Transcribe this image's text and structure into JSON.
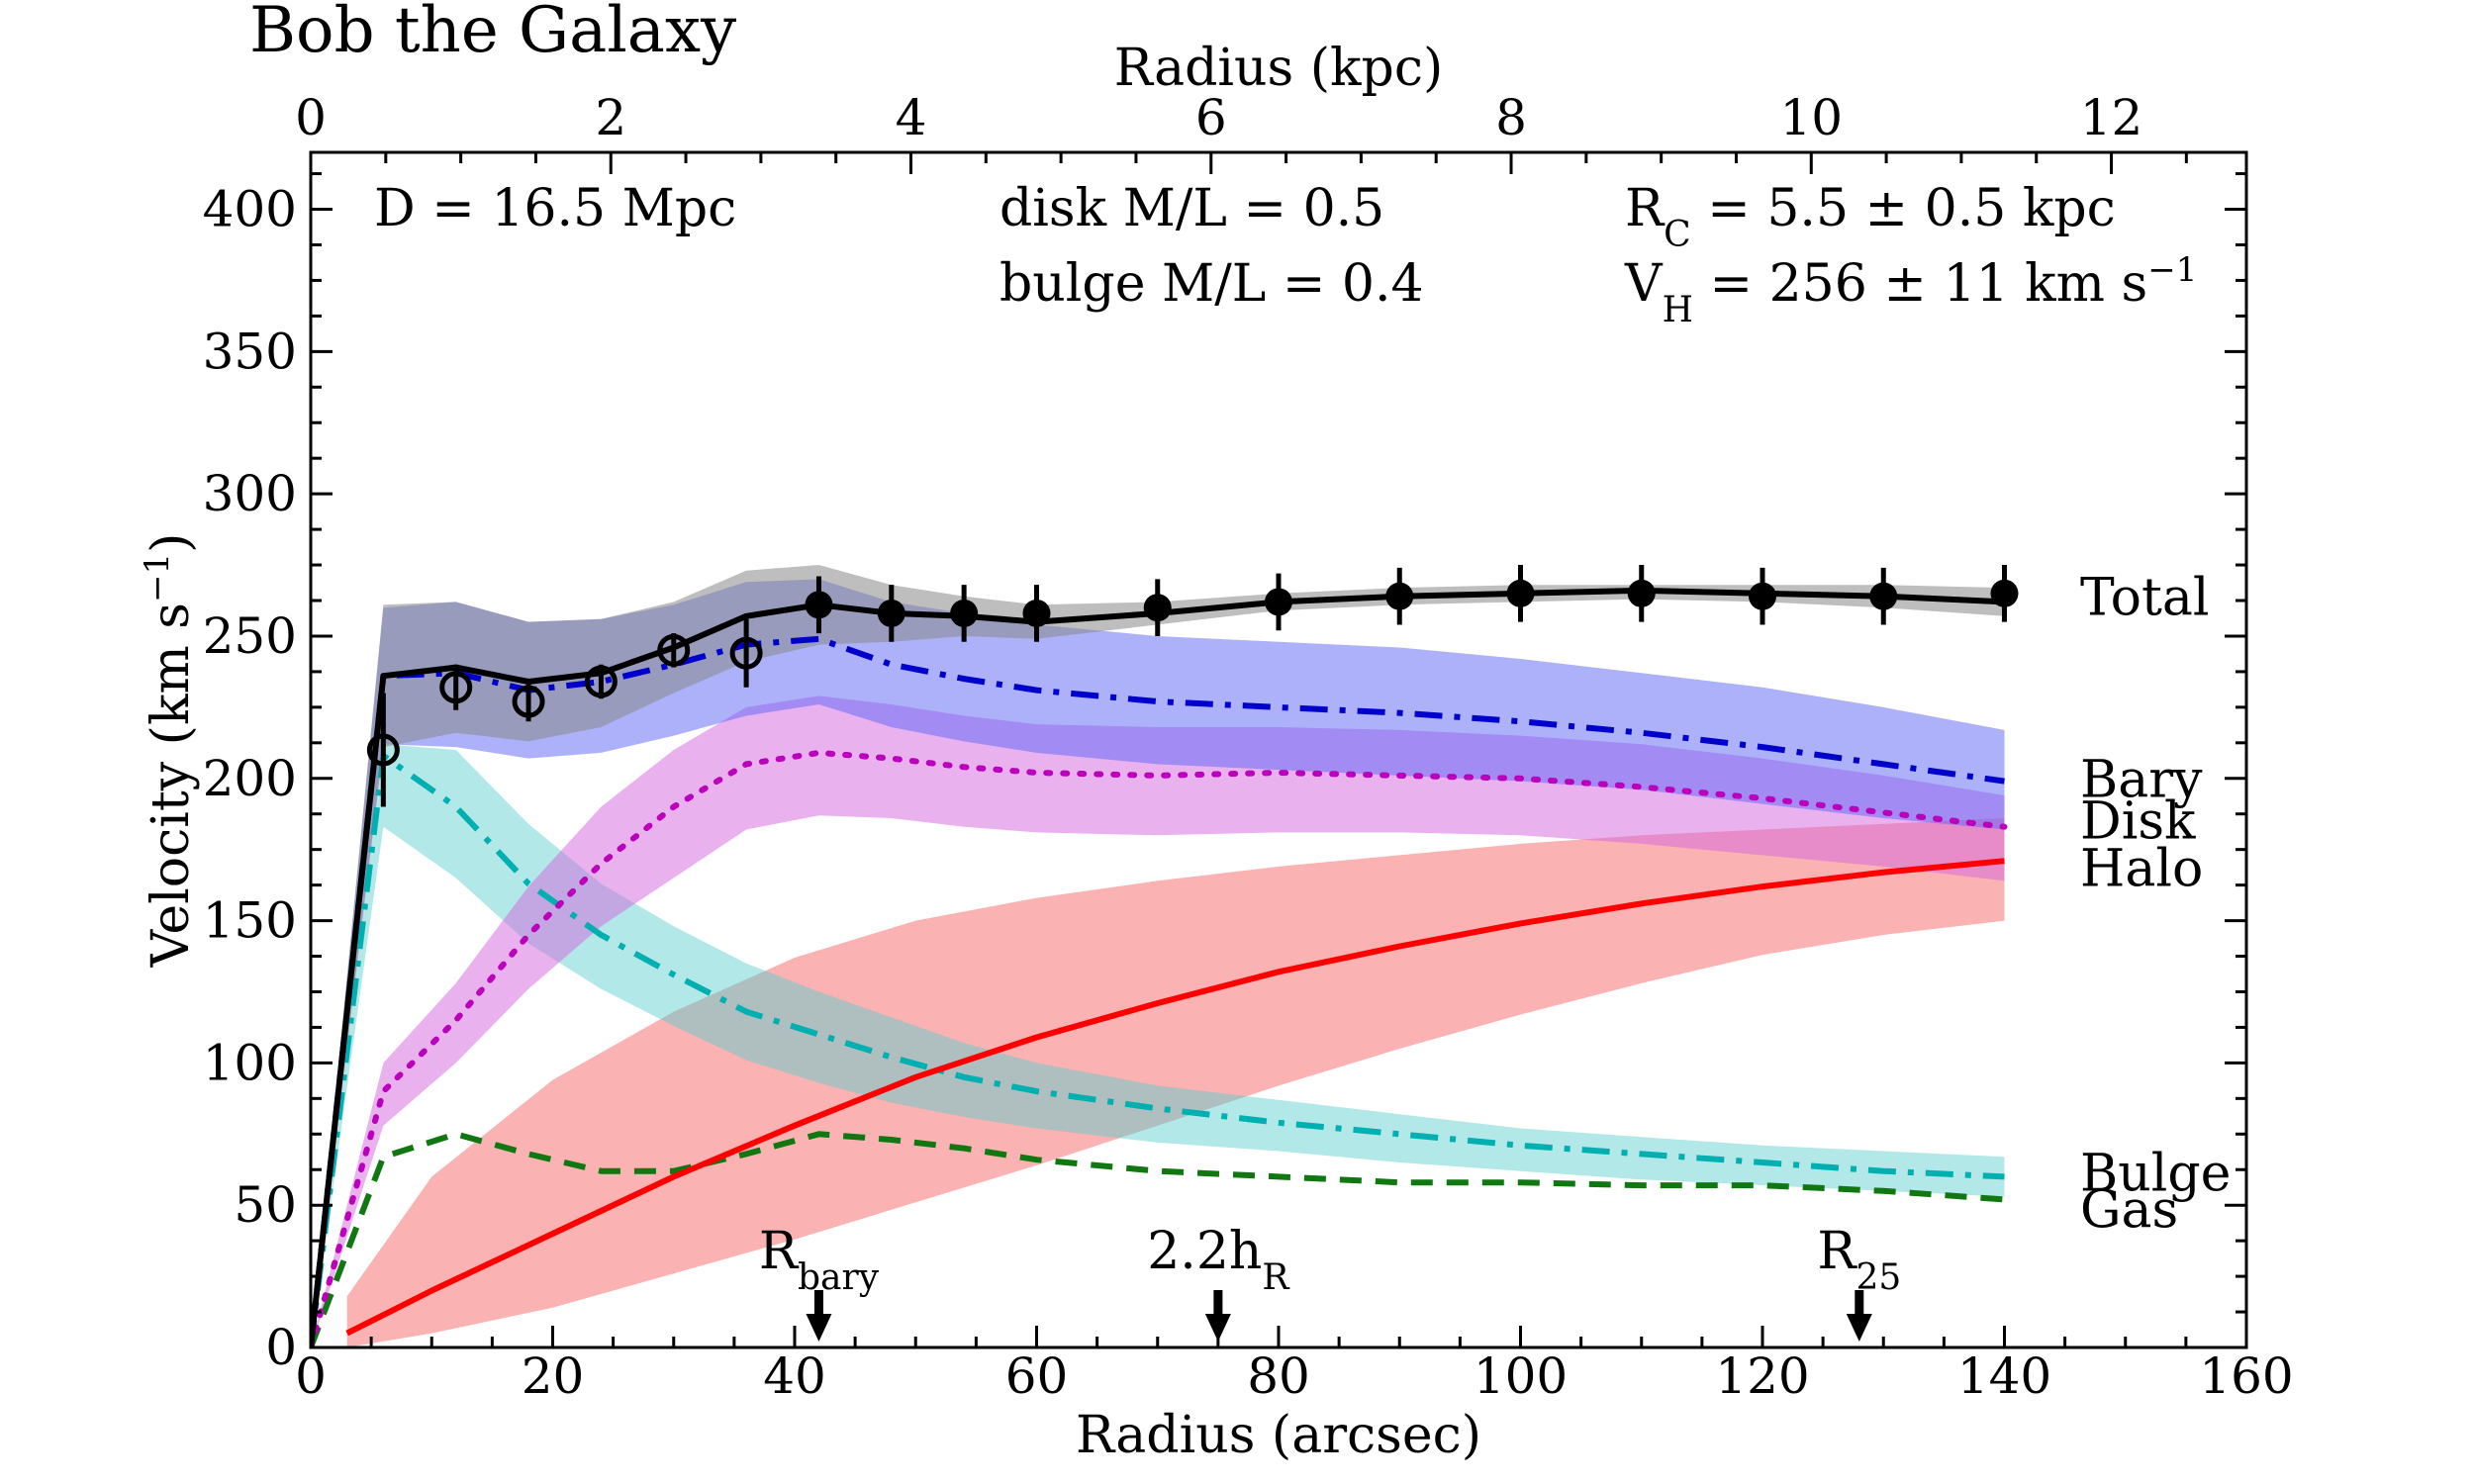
{
  "chart_data": {
    "type": "line",
    "title": "Bob the Galaxy",
    "xlabel": "Radius (arcsec)",
    "x2label": "Radius (kpc)",
    "ylabel": "Velocity (km s",
    "ylabel_sup": "−1",
    "ylabel_end": ")",
    "xlim": [
      0,
      160
    ],
    "ylim": [
      0,
      420
    ],
    "x2lim": [
      0,
      12.9
    ],
    "xticks": [
      "0",
      "20",
      "40",
      "60",
      "80",
      "100",
      "120",
      "140",
      "160"
    ],
    "yticks": [
      "0",
      "50",
      "100",
      "150",
      "200",
      "250",
      "300",
      "350",
      "400"
    ],
    "x2ticks": [
      "0",
      "2",
      "4",
      "6",
      "8",
      "10",
      "12"
    ],
    "grid": false,
    "annotations": {
      "distance": "D = 16.5 Mpc",
      "disk_ml": "disk M/L = 0.5",
      "bulge_ml": "bulge M/L = 0.4",
      "rc_main": "R",
      "rc_sub": "C",
      "rc_rest": " = 5.5 ± 0.5 kpc",
      "vh_main": "V",
      "vh_sub": "H",
      "vh_rest": " = 256 ± 11 km s",
      "vh_sup": "−1"
    },
    "markers": [
      {
        "x": 42,
        "main": "R",
        "sub": "bary"
      },
      {
        "x": 75,
        "main": "2.2h",
        "sub": "R"
      },
      {
        "x": 128,
        "main": "R",
        "sub": "25"
      }
    ],
    "colors": {
      "total": "#000000",
      "bary": "#0000cc",
      "disk": "#bb00bb",
      "bulge": "#00b0b0",
      "gas": "#117711",
      "halo": "#ff0000",
      "total_band": "#888888",
      "bary_band": "#5b63f5",
      "disk_band": "#d466dd",
      "bulge_band": "#55cccc",
      "halo_band": "#f56565"
    },
    "series": [
      {
        "name": "Total",
        "key": "total",
        "style": "solid",
        "x": [
          0,
          6,
          12,
          18,
          24,
          30,
          36,
          42,
          48,
          54,
          60,
          70,
          80,
          90,
          100,
          110,
          120,
          130,
          140
        ],
        "y": [
          0,
          236,
          239,
          234,
          237,
          246,
          257,
          261,
          258,
          257,
          255,
          258,
          262,
          264,
          265,
          266,
          265,
          264,
          262
        ],
        "upper": [
          0,
          261,
          262,
          255,
          256,
          262,
          273,
          275,
          268,
          264,
          261,
          262,
          265,
          267,
          268,
          268,
          268,
          268,
          267
        ],
        "lower": [
          0,
          211,
          216,
          213,
          218,
          230,
          241,
          247,
          248,
          250,
          249,
          254,
          259,
          261,
          262,
          263,
          262,
          260,
          257
        ]
      },
      {
        "name": "Bary",
        "key": "bary",
        "style": "dashdot",
        "x": [
          0,
          6,
          12,
          18,
          24,
          30,
          36,
          42,
          48,
          54,
          60,
          70,
          80,
          90,
          100,
          110,
          120,
          130,
          140
        ],
        "y": [
          0,
          236,
          237,
          231,
          234,
          240,
          247,
          249,
          240,
          235,
          231,
          227,
          225,
          223,
          220,
          216,
          211,
          205,
          199
        ],
        "upper": [
          0,
          260,
          262,
          255,
          256,
          261,
          269,
          270,
          262,
          258,
          254,
          250,
          248,
          246,
          242,
          237,
          232,
          225,
          217
        ],
        "lower": [
          0,
          212,
          211,
          207,
          209,
          215,
          222,
          226,
          218,
          213,
          209,
          205,
          203,
          201,
          199,
          196,
          191,
          186,
          182
        ]
      },
      {
        "name": "Disk",
        "key": "disk",
        "style": "dotted",
        "x": [
          0,
          6,
          12,
          18,
          24,
          30,
          36,
          42,
          48,
          54,
          60,
          70,
          80,
          90,
          100,
          110,
          120,
          130,
          140
        ],
        "y": [
          0,
          90,
          115,
          145,
          170,
          190,
          205,
          209,
          207,
          204,
          202,
          201,
          202,
          201,
          200,
          197,
          193,
          188,
          183
        ],
        "upper": [
          0,
          100,
          128,
          162,
          190,
          210,
          225,
          229,
          226,
          222,
          219,
          218,
          218,
          217,
          215,
          212,
          207,
          201,
          194
        ],
        "lower": [
          0,
          78,
          100,
          126,
          148,
          165,
          182,
          187,
          186,
          183,
          181,
          180,
          181,
          181,
          180,
          177,
          173,
          169,
          164
        ]
      },
      {
        "name": "Halo",
        "key": "halo",
        "style": "solid",
        "x": [
          3,
          10,
          20,
          30,
          40,
          50,
          60,
          70,
          80,
          90,
          100,
          110,
          120,
          130,
          140
        ],
        "y": [
          5,
          20,
          40,
          60,
          78,
          95,
          109,
          121,
          132,
          141,
          149,
          156,
          162,
          167,
          171
        ],
        "upper": [
          18,
          60,
          94,
          118,
          137,
          150,
          158,
          164,
          169,
          173,
          177,
          180,
          182,
          184,
          186
        ],
        "lower": [
          0,
          5,
          14,
          26,
          38,
          51,
          64,
          78,
          92,
          105,
          117,
          128,
          138,
          145,
          150
        ]
      },
      {
        "name": "Bulge",
        "key": "bulge",
        "style": "dashdot",
        "x": [
          0,
          6,
          12,
          18,
          24,
          30,
          36,
          42,
          48,
          54,
          60,
          70,
          80,
          90,
          100,
          110,
          120,
          130,
          140
        ],
        "y": [
          0,
          208,
          190,
          163,
          145,
          131,
          118,
          110,
          102,
          95,
          90,
          84,
          79,
          75,
          71,
          68,
          65,
          62,
          60
        ],
        "upper": [
          0,
          212,
          210,
          184,
          163,
          148,
          135,
          125,
          116,
          107,
          100,
          92,
          87,
          82,
          77,
          74,
          71,
          69,
          67
        ],
        "lower": [
          0,
          183,
          165,
          142,
          126,
          113,
          101,
          93,
          86,
          81,
          77,
          72,
          69,
          65,
          62,
          59,
          57,
          55,
          53
        ]
      },
      {
        "name": "Gas",
        "key": "gas",
        "style": "dashed",
        "x": [
          0,
          6,
          12,
          18,
          24,
          30,
          36,
          42,
          48,
          54,
          60,
          70,
          80,
          90,
          100,
          110,
          120,
          130,
          140
        ],
        "y": [
          0,
          67,
          75,
          68,
          62,
          62,
          68,
          75,
          73,
          70,
          66,
          62,
          60,
          58,
          58,
          57,
          57,
          55,
          52
        ]
      }
    ],
    "data_points": {
      "open": {
        "x": [
          6,
          12,
          18,
          24,
          30,
          36
        ],
        "y": [
          210,
          232,
          227,
          234,
          245,
          244
        ],
        "err": [
          20,
          8,
          7,
          6,
          6,
          12
        ]
      },
      "filled": {
        "x": [
          42,
          48,
          54,
          60,
          70,
          80,
          90,
          100,
          110,
          120,
          130,
          140
        ],
        "y": [
          261,
          258,
          258,
          258,
          260,
          262,
          264,
          265,
          265,
          264,
          264,
          265
        ],
        "err": [
          10,
          10,
          10,
          10,
          10,
          10,
          10,
          10,
          10,
          10,
          10,
          10
        ]
      }
    }
  }
}
